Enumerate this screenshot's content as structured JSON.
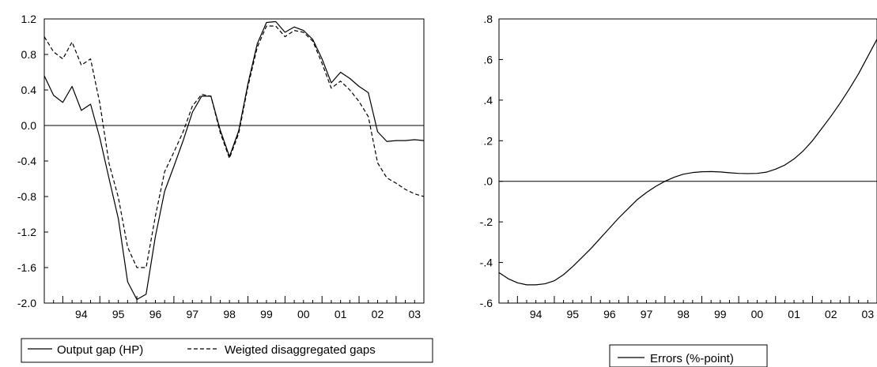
{
  "chart_data": [
    {
      "type": "line",
      "ylim": [
        -2.0,
        1.2
      ],
      "xlim": [
        1993.5,
        2003.75
      ],
      "y_ticks": [
        1.2,
        0.8,
        0.4,
        0.0,
        -0.4,
        -0.8,
        -1.2,
        -1.6,
        -2.0
      ],
      "y_tick_labels": [
        "1.2",
        "0.8",
        "0.4",
        "0.0",
        "-0.4",
        "-0.8",
        "-1.2",
        "-1.6",
        "-2.0"
      ],
      "x_tick_labels": [
        "94",
        "95",
        "96",
        "97",
        "98",
        "99",
        "00",
        "01",
        "02",
        "03"
      ],
      "zero_line": true,
      "frame": "box",
      "legend_position": "bottom",
      "series": [
        {
          "name": "Output gap (HP)",
          "style": "solid",
          "x": [
            1993.5,
            1993.75,
            1994,
            1994.25,
            1994.5,
            1994.75,
            1995,
            1995.25,
            1995.5,
            1995.75,
            1996,
            1996.25,
            1996.5,
            1996.75,
            1997,
            1997.25,
            1997.5,
            1997.75,
            1998,
            1998.25,
            1998.5,
            1998.75,
            1999,
            1999.25,
            1999.5,
            1999.75,
            2000,
            2000.25,
            2000.5,
            2000.75,
            2001,
            2001.25,
            2001.5,
            2001.75,
            2002,
            2002.25,
            2002.5,
            2002.75,
            2003,
            2003.25,
            2003.5,
            2003.75
          ],
          "values": [
            0.56,
            0.34,
            0.26,
            0.44,
            0.17,
            0.24,
            -0.14,
            -0.6,
            -1.05,
            -1.76,
            -1.96,
            -1.9,
            -1.25,
            -0.74,
            -0.46,
            -0.17,
            0.15,
            0.33,
            0.33,
            -0.05,
            -0.35,
            -0.06,
            0.47,
            0.92,
            1.16,
            1.17,
            1.05,
            1.11,
            1.07,
            0.97,
            0.75,
            0.48,
            0.6,
            0.53,
            0.44,
            0.37,
            -0.07,
            -0.18,
            -0.17,
            -0.17,
            -0.16,
            -0.17
          ]
        },
        {
          "name": "Weigted disaggregated gaps",
          "style": "dashed",
          "x": [
            1993.5,
            1993.75,
            1994,
            1994.25,
            1994.5,
            1994.75,
            1995,
            1995.25,
            1995.5,
            1995.75,
            1996,
            1996.25,
            1996.5,
            1996.75,
            1997,
            1997.25,
            1997.5,
            1997.75,
            1998,
            1998.25,
            1998.5,
            1998.75,
            1999,
            1999.25,
            1999.5,
            1999.75,
            2000,
            2000.25,
            2000.5,
            2000.75,
            2001,
            2001.25,
            2001.5,
            2001.75,
            2002,
            2002.25,
            2002.5,
            2002.75,
            2003,
            2003.25,
            2003.5,
            2003.75
          ],
          "values": [
            1.0,
            0.83,
            0.75,
            0.94,
            0.68,
            0.75,
            0.25,
            -0.43,
            -0.81,
            -1.37,
            -1.6,
            -1.6,
            -1.02,
            -0.52,
            -0.3,
            -0.07,
            0.22,
            0.35,
            0.33,
            -0.08,
            -0.37,
            -0.09,
            0.44,
            0.88,
            1.12,
            1.12,
            1.0,
            1.07,
            1.05,
            0.95,
            0.7,
            0.42,
            0.5,
            0.4,
            0.27,
            0.1,
            -0.42,
            -0.59,
            -0.65,
            -0.72,
            -0.77,
            -0.8
          ]
        }
      ]
    },
    {
      "type": "line",
      "ylim": [
        -0.6,
        0.8
      ],
      "xlim": [
        1993.5,
        2003.75
      ],
      "y_ticks": [
        0.8,
        0.6,
        0.4,
        0.2,
        0.0,
        -0.2,
        -0.4,
        -0.6
      ],
      "y_tick_labels": [
        ".8",
        ".6",
        ".4",
        ".2",
        ".0",
        "-.2",
        "-.4",
        "-.6"
      ],
      "x_tick_labels": [
        "94",
        "95",
        "96",
        "97",
        "98",
        "99",
        "00",
        "01",
        "02",
        "03"
      ],
      "zero_line": true,
      "frame": "box",
      "legend_position": "bottom",
      "series": [
        {
          "name": "Errors (%-point)",
          "style": "solid",
          "x": [
            1993.5,
            1993.75,
            1994,
            1994.25,
            1994.5,
            1994.75,
            1995,
            1995.25,
            1995.5,
            1995.75,
            1996,
            1996.25,
            1996.5,
            1996.75,
            1997,
            1997.25,
            1997.5,
            1997.75,
            1998,
            1998.25,
            1998.5,
            1998.75,
            1999,
            1999.25,
            1999.5,
            1999.75,
            2000,
            2000.25,
            2000.5,
            2000.75,
            2001,
            2001.25,
            2001.5,
            2001.75,
            2002,
            2002.25,
            2002.5,
            2002.75,
            2003,
            2003.25,
            2003.5,
            2003.75
          ],
          "values": [
            -0.45,
            -0.48,
            -0.5,
            -0.51,
            -0.51,
            -0.505,
            -0.49,
            -0.46,
            -0.42,
            -0.375,
            -0.33,
            -0.28,
            -0.23,
            -0.18,
            -0.135,
            -0.09,
            -0.055,
            -0.025,
            0.0,
            0.02,
            0.035,
            0.043,
            0.047,
            0.048,
            0.046,
            0.042,
            0.039,
            0.038,
            0.039,
            0.045,
            0.06,
            0.08,
            0.11,
            0.15,
            0.2,
            0.26,
            0.32,
            0.385,
            0.455,
            0.53,
            0.615,
            0.7
          ]
        }
      ]
    }
  ],
  "legends": [
    [
      "Output gap (HP)",
      "Weigted disaggregated gaps"
    ],
    [
      "Errors (%-point)"
    ]
  ]
}
